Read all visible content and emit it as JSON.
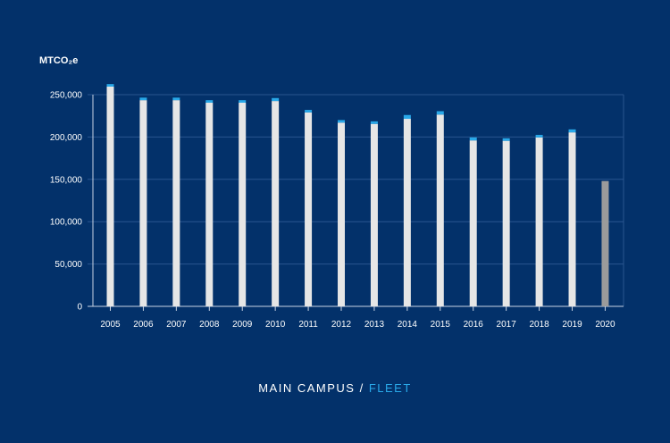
{
  "chart_data": {
    "type": "bar",
    "stacked": true,
    "ylabel": "MTCO₂e",
    "ylim": [
      0,
      250000
    ],
    "yticks": [
      0,
      50000,
      100000,
      150000,
      200000,
      250000
    ],
    "ytick_labels": [
      "0",
      "50,000",
      "100,000",
      "150,000",
      "200,000",
      "250,000"
    ],
    "grid": true,
    "categories": [
      "2005",
      "2006",
      "2007",
      "2008",
      "2009",
      "2010",
      "2011",
      "2012",
      "2013",
      "2014",
      "2015",
      "2016",
      "2017",
      "2018",
      "2019",
      "2020"
    ],
    "series": [
      {
        "name": "MAIN CAMPUS",
        "color": "#e6e6e6",
        "values": [
          259500,
          243500,
          243500,
          240500,
          240500,
          242500,
          229000,
          217000,
          215500,
          221500,
          226500,
          196000,
          195500,
          199500,
          205500,
          148000
        ]
      },
      {
        "name": "FLEET",
        "color": "#29a8e8",
        "values": [
          3000,
          3000,
          3000,
          3000,
          3000,
          3500,
          3000,
          3000,
          3000,
          4500,
          4000,
          3500,
          3000,
          3000,
          3500,
          0
        ]
      }
    ],
    "highlight": {
      "category": "2020",
      "color": "#9b9b9b"
    },
    "caption": {
      "main": "MAIN CAMPUS",
      "separator": "/",
      "accent": "FLEET"
    }
  }
}
